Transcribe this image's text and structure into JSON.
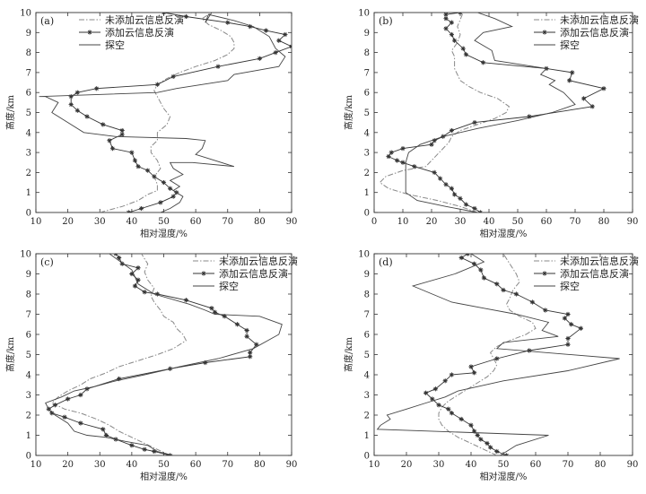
{
  "chart_data": [
    {
      "type": "line",
      "panel_label": "(a)",
      "xlabel": "相对湿度/%",
      "ylabel": "高度/km",
      "xlim": [
        10,
        90
      ],
      "ylim": [
        0,
        10
      ],
      "x_ticks": [
        10,
        20,
        30,
        40,
        50,
        60,
        70,
        80,
        90
      ],
      "y_ticks": [
        0,
        1,
        2,
        3,
        4,
        5,
        6,
        7,
        8,
        9,
        10
      ],
      "legend_position": "top-left",
      "series": [
        {
          "name": "未添加云信息反演",
          "style": "dashdot",
          "x": [
            30,
            37,
            42,
            45,
            48,
            48,
            47,
            49,
            48,
            46,
            46,
            48,
            48,
            51,
            52,
            50,
            49,
            48,
            47,
            48,
            51,
            55,
            60,
            66,
            70,
            72,
            72,
            71,
            68,
            64,
            62,
            65
          ],
          "y": [
            0,
            0.3,
            0.6,
            0.9,
            1.1,
            1.4,
            1.8,
            2.2,
            2.6,
            3.0,
            3.3,
            3.6,
            4.0,
            4.4,
            4.8,
            5.2,
            5.5,
            5.8,
            6.1,
            6.4,
            6.7,
            7.0,
            7.3,
            7.6,
            7.9,
            8.2,
            8.5,
            8.8,
            9.1,
            9.4,
            9.7,
            10
          ]
        },
        {
          "name": "添加云信息反演",
          "style": "star-marker",
          "x": [
            39,
            43,
            49,
            53,
            54,
            52,
            50,
            47,
            45,
            42,
            41,
            40,
            34,
            33,
            37,
            37,
            31,
            26,
            23,
            21,
            21,
            23,
            29,
            48,
            53,
            67,
            80,
            85,
            90,
            86,
            88,
            82,
            77,
            70,
            57,
            50
          ],
          "y": [
            0,
            0.2,
            0.5,
            0.8,
            1.0,
            1.2,
            1.5,
            1.8,
            2.1,
            2.3,
            2.6,
            3.0,
            3.2,
            3.6,
            3.9,
            4.1,
            4.4,
            4.8,
            5.1,
            5.4,
            5.8,
            6.0,
            6.2,
            6.4,
            6.8,
            7.3,
            7.7,
            8.0,
            8.3,
            8.6,
            8.9,
            9.1,
            9.3,
            9.5,
            9.8,
            10
          ]
        },
        {
          "name": "探空",
          "style": "solid",
          "x": [
            49,
            52,
            55,
            56,
            53,
            55,
            52,
            56,
            53,
            52,
            59,
            72,
            60,
            62,
            63,
            57,
            35,
            25,
            20,
            15,
            17,
            13,
            11,
            48,
            54,
            70,
            72,
            86,
            88,
            85,
            83,
            78,
            72,
            64,
            63,
            65
          ],
          "y": [
            0,
            0.2,
            0.5,
            0.8,
            1.1,
            1.3,
            1.6,
            1.9,
            2.2,
            2.5,
            2.5,
            2.3,
            2.9,
            3.2,
            3.6,
            3.7,
            3.8,
            4.0,
            4.5,
            5.0,
            5.5,
            5.8,
            5.8,
            6.0,
            6.2,
            6.6,
            6.9,
            7.3,
            7.8,
            8.2,
            8.8,
            9.3,
            9.6,
            9.9,
            9.5,
            10
          ]
        }
      ]
    },
    {
      "type": "line",
      "panel_label": "(b)",
      "xlabel": "相对湿度/%",
      "ylabel": "高度/km",
      "xlim": [
        0,
        90
      ],
      "ylim": [
        0,
        10
      ],
      "x_ticks": [
        0,
        10,
        20,
        30,
        40,
        50,
        60,
        70,
        80,
        90
      ],
      "y_ticks": [
        0,
        1,
        2,
        3,
        4,
        5,
        6,
        7,
        8,
        9,
        10
      ],
      "legend_position": "top-right",
      "series": [
        {
          "name": "未添加云信息反演",
          "style": "dashdot",
          "x": [
            36,
            30,
            22,
            12,
            5,
            2,
            4,
            10,
            18,
            20,
            22,
            24,
            26,
            27,
            30,
            36,
            42,
            46,
            47,
            43,
            37,
            33,
            30,
            29,
            28,
            28,
            28,
            27,
            29,
            30,
            29,
            31
          ],
          "y": [
            0,
            0.3,
            0.6,
            0.9,
            1.2,
            1.5,
            1.8,
            2.1,
            2.3,
            2.6,
            2.9,
            3.2,
            3.5,
            3.8,
            4.1,
            4.4,
            4.7,
            5.0,
            5.3,
            5.7,
            6.0,
            6.3,
            6.6,
            6.9,
            7.2,
            7.5,
            7.8,
            8.1,
            8.5,
            8.9,
            9.3,
            10
          ]
        },
        {
          "name": "添加云信息反演",
          "style": "star-marker",
          "x": [
            37,
            35,
            32,
            30,
            28,
            27,
            25,
            23,
            21,
            14,
            10,
            8,
            5,
            6,
            10,
            20,
            21,
            24,
            27,
            35,
            54,
            76,
            73,
            80,
            68,
            69,
            60,
            38,
            32,
            31,
            28,
            27,
            25,
            27,
            25,
            25,
            30
          ],
          "y": [
            0,
            0.2,
            0.4,
            0.7,
            0.9,
            1.2,
            1.4,
            1.7,
            2.0,
            2.3,
            2.5,
            2.6,
            2.8,
            3.0,
            3.2,
            3.4,
            3.6,
            3.8,
            4.1,
            4.5,
            4.8,
            5.3,
            5.7,
            6.2,
            6.6,
            7.0,
            7.2,
            7.5,
            7.9,
            8.2,
            8.6,
            8.9,
            9.2,
            9.5,
            9.7,
            9.9,
            10
          ]
        },
        {
          "name": "探空",
          "style": "solid",
          "x": [
            36,
            25,
            15,
            11,
            11,
            11,
            11,
            12,
            16,
            24,
            36,
            50,
            62,
            70,
            66,
            61,
            63,
            58,
            60,
            42,
            41,
            35,
            38,
            48,
            42,
            36
          ],
          "y": [
            0,
            0.3,
            0.6,
            1.0,
            1.5,
            2.0,
            2.5,
            3.0,
            3.4,
            3.8,
            4.2,
            4.6,
            5.0,
            5.4,
            6.0,
            6.4,
            6.6,
            6.9,
            7.2,
            7.6,
            8.1,
            8.6,
            9.0,
            9.3,
            9.7,
            10
          ]
        }
      ]
    },
    {
      "type": "line",
      "panel_label": "(c)",
      "xlabel": "相对湿度/%",
      "ylabel": "高度/km",
      "xlim": [
        10,
        90
      ],
      "ylim": [
        0,
        10
      ],
      "x_ticks": [
        10,
        20,
        30,
        40,
        50,
        60,
        70,
        80,
        90
      ],
      "y_ticks": [
        0,
        1,
        2,
        3,
        4,
        5,
        6,
        7,
        8,
        9,
        10
      ],
      "legend_position": "top-right",
      "series": [
        {
          "name": "未添加云信息反演",
          "style": "dashdot",
          "x": [
            52,
            48,
            44,
            40,
            36,
            33,
            29,
            24,
            19,
            15,
            17,
            20,
            24,
            27,
            32,
            36,
            42,
            48,
            53,
            57,
            56,
            54,
            53,
            50,
            49,
            47,
            46,
            47,
            45,
            44,
            45,
            43
          ],
          "y": [
            0,
            0.3,
            0.6,
            0.9,
            1.2,
            1.5,
            1.8,
            2.1,
            2.3,
            2.6,
            2.9,
            3.2,
            3.5,
            3.8,
            4.1,
            4.4,
            4.7,
            5.0,
            5.3,
            5.7,
            6.0,
            6.3,
            6.6,
            6.9,
            7.2,
            7.6,
            7.9,
            8.3,
            8.7,
            9.1,
            9.5,
            10
          ]
        },
        {
          "name": "添加云信息反演",
          "style": "star-marker",
          "x": [
            52,
            47,
            44,
            40,
            35,
            32,
            31,
            24,
            19,
            15,
            14,
            16,
            20,
            24,
            26,
            36,
            52,
            63,
            77,
            77,
            79,
            76,
            76,
            73,
            69,
            66,
            65,
            57,
            48,
            44,
            41,
            42,
            40,
            42,
            37,
            36,
            35
          ],
          "y": [
            0,
            0.2,
            0.3,
            0.5,
            0.8,
            1.0,
            1.3,
            1.6,
            1.9,
            2.1,
            2.3,
            2.5,
            2.8,
            3.0,
            3.3,
            3.8,
            4.3,
            4.6,
            4.9,
            5.1,
            5.5,
            5.9,
            6.2,
            6.5,
            6.9,
            7.1,
            7.3,
            7.7,
            8.0,
            8.1,
            8.4,
            8.7,
            9.0,
            9.3,
            9.5,
            9.8,
            10
          ]
        },
        {
          "name": "探空",
          "style": "solid",
          "x": [
            53,
            48,
            45,
            38,
            32,
            26,
            22,
            20,
            16,
            14,
            13,
            18,
            22,
            28,
            35,
            44,
            55,
            67,
            78,
            86,
            87,
            80,
            66,
            63,
            58,
            47,
            42,
            40,
            33
          ],
          "y": [
            0,
            0.2,
            0.5,
            0.7,
            0.9,
            1.0,
            1.2,
            1.6,
            2.0,
            2.3,
            2.6,
            2.9,
            3.2,
            3.4,
            3.7,
            4.0,
            4.4,
            4.8,
            5.3,
            6.0,
            6.5,
            6.9,
            7.0,
            7.2,
            7.5,
            8.0,
            8.5,
            9.2,
            10
          ]
        }
      ]
    },
    {
      "type": "line",
      "panel_label": "(d)",
      "xlabel": "相对湿度/%",
      "ylabel": "高度/km",
      "xlim": [
        10,
        90
      ],
      "ylim": [
        0,
        10
      ],
      "x_ticks": [
        10,
        20,
        30,
        40,
        50,
        60,
        70,
        80,
        90
      ],
      "y_ticks": [
        0,
        1,
        2,
        3,
        4,
        5,
        6,
        7,
        8,
        9,
        10
      ],
      "legend_position": "top-right",
      "series": [
        {
          "name": "未添加云信息反演",
          "style": "dashdot",
          "x": [
            48,
            44,
            40,
            36,
            33,
            31,
            30,
            30,
            31,
            33,
            36,
            39,
            42,
            45,
            47,
            48,
            47,
            46,
            48,
            52,
            57,
            60,
            59,
            55,
            52,
            51,
            52,
            53,
            55,
            54,
            52,
            50
          ],
          "y": [
            0,
            0.3,
            0.6,
            0.9,
            1.2,
            1.5,
            1.8,
            2.1,
            2.4,
            2.7,
            3.0,
            3.3,
            3.6,
            3.9,
            4.2,
            4.5,
            4.8,
            5.1,
            5.4,
            5.7,
            6.0,
            6.3,
            6.6,
            6.9,
            7.2,
            7.5,
            7.8,
            8.2,
            8.6,
            9.0,
            9.5,
            10
          ]
        },
        {
          "name": "添加云信息反演",
          "style": "star-marker",
          "x": [
            51,
            48,
            46,
            45,
            43,
            42,
            41,
            40,
            37,
            34,
            33,
            30,
            28,
            26,
            29,
            32,
            34,
            41,
            40,
            48,
            58,
            70,
            70,
            74,
            71,
            69,
            70,
            63,
            59,
            54,
            50,
            48,
            44,
            43,
            41,
            37,
            39
          ],
          "y": [
            0,
            0.2,
            0.4,
            0.6,
            0.8,
            1.0,
            1.2,
            1.5,
            1.8,
            2.1,
            2.3,
            2.5,
            2.8,
            3.1,
            3.3,
            3.7,
            4.0,
            4.1,
            4.4,
            4.8,
            5.2,
            5.5,
            5.8,
            6.3,
            6.5,
            6.8,
            7.0,
            7.2,
            7.6,
            8.0,
            8.2,
            8.5,
            8.8,
            9.2,
            9.5,
            9.8,
            10
          ]
        },
        {
          "name": "探空",
          "style": "solid",
          "x": [
            49,
            54,
            64,
            11,
            12,
            15,
            14,
            20,
            26,
            32,
            36,
            50,
            70,
            86,
            48,
            50,
            67,
            62,
            64,
            54,
            44,
            34,
            22,
            35,
            44,
            40
          ],
          "y": [
            0,
            0.5,
            1.0,
            1.3,
            1.5,
            1.8,
            2.0,
            2.3,
            2.6,
            2.9,
            3.2,
            3.7,
            4.2,
            4.8,
            5.3,
            5.6,
            5.9,
            6.2,
            6.6,
            7.0,
            7.3,
            7.6,
            8.4,
            9.0,
            9.6,
            10
          ]
        }
      ]
    }
  ]
}
